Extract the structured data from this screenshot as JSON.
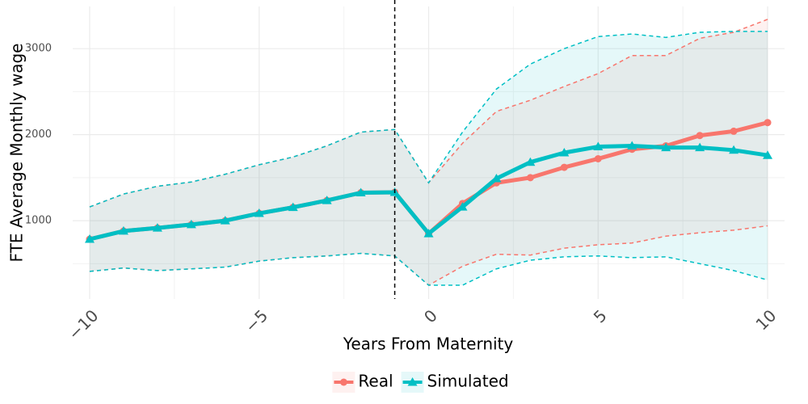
{
  "chart_data": {
    "type": "line",
    "x_label": "Years From Maternity",
    "y_label": "FTE Average Monthly wage",
    "x": [
      -10,
      -9,
      -8,
      -7,
      -6,
      -5,
      -4,
      -3,
      -2,
      -1,
      0,
      1,
      2,
      3,
      4,
      5,
      6,
      7,
      8,
      9,
      10
    ],
    "xlim": [
      -10.5,
      10.5
    ],
    "xticks": [
      {
        "value": -10,
        "label": "−10"
      },
      {
        "value": -5,
        "label": "−5"
      },
      {
        "value": 0,
        "label": "0"
      },
      {
        "value": 5,
        "label": "5"
      },
      {
        "value": 10,
        "label": "10"
      }
    ],
    "ylim": [
      90,
      3490
    ],
    "yticks": [
      1000,
      2000,
      3000
    ],
    "grid": true,
    "vline": -1,
    "legend": "bottom",
    "series": [
      {
        "name": "Real",
        "color": "#F8766D",
        "marker": "circle",
        "values": [
          785,
          880,
          915,
          955,
          1000,
          1085,
          1155,
          1235,
          1325,
          1330,
          850,
          1200,
          1440,
          1500,
          1620,
          1720,
          1830,
          1870,
          1990,
          2040,
          2140
        ],
        "upper": [
          1160,
          1310,
          1400,
          1450,
          1540,
          1650,
          1740,
          1870,
          2030,
          2060,
          1440,
          1900,
          2270,
          2400,
          2560,
          2710,
          2920,
          2920,
          3120,
          3190,
          3340
        ],
        "lower": [
          410,
          450,
          420,
          440,
          460,
          530,
          570,
          590,
          620,
          590,
          250,
          470,
          610,
          600,
          680,
          720,
          740,
          820,
          860,
          890,
          940
        ]
      },
      {
        "name": "Simulated",
        "color": "#00BFC4",
        "marker": "triangle",
        "values": [
          785,
          880,
          915,
          955,
          1000,
          1085,
          1155,
          1235,
          1325,
          1330,
          850,
          1160,
          1490,
          1680,
          1790,
          1860,
          1870,
          1850,
          1850,
          1820,
          1760
        ],
        "upper": [
          1160,
          1310,
          1400,
          1450,
          1540,
          1650,
          1740,
          1870,
          2030,
          2060,
          1440,
          2030,
          2530,
          2820,
          3000,
          3140,
          3170,
          3130,
          3190,
          3200,
          3200
        ],
        "lower": [
          410,
          450,
          420,
          440,
          460,
          530,
          570,
          590,
          620,
          590,
          250,
          250,
          440,
          540,
          580,
          590,
          570,
          580,
          500,
          420,
          310
        ]
      }
    ]
  }
}
